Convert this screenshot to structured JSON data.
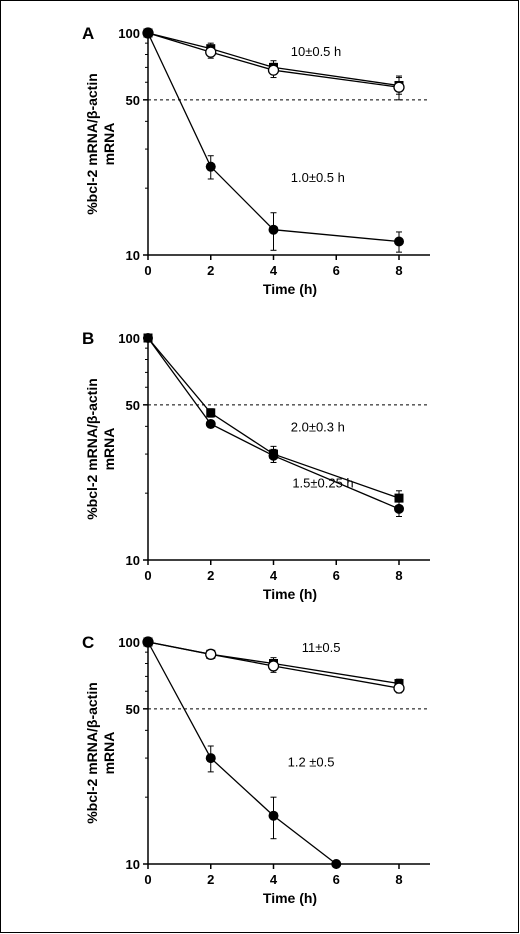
{
  "chart_data": [
    {
      "panel": "A",
      "type": "line",
      "xlabel": "Time (h)",
      "ylabel": "%bcl-2 mRNA/β-actin mRNA",
      "ylabel_lines": [
        "%bcl-2 mRNA/β-actin",
        "mRNA"
      ],
      "y_scale": "log",
      "xlim": [
        0,
        9
      ],
      "ylim": [
        10,
        100
      ],
      "x_ticks": [
        "0",
        "2",
        "4",
        "6",
        "8"
      ],
      "y_ticks": [
        "10",
        "50",
        "100"
      ],
      "reference_line_y": 50,
      "series": [
        {
          "marker": "square",
          "x": [
            0,
            2,
            4,
            8
          ],
          "y": [
            100,
            85,
            70,
            58
          ],
          "err": [
            0,
            5,
            5,
            5
          ]
        },
        {
          "marker": "open-circle",
          "x": [
            0,
            2,
            4,
            8
          ],
          "y": [
            100,
            82,
            68,
            57
          ],
          "err": [
            0,
            5,
            5,
            7
          ]
        },
        {
          "marker": "filled-circle",
          "x": [
            0,
            2,
            4,
            8
          ],
          "y": [
            100,
            25,
            13,
            11.5
          ],
          "err": [
            0,
            3,
            2.5,
            1.2
          ]
        }
      ],
      "annotations": [
        {
          "text": "10±0.5 h",
          "x": 4.55,
          "y": 83
        },
        {
          "text": "1.0±0.5 h",
          "x": 4.55,
          "y": 22.5
        }
      ]
    },
    {
      "panel": "B",
      "type": "line",
      "xlabel": "Time (h)",
      "ylabel": "%bcl-2 mRNA/β-actin mRNA",
      "ylabel_lines": [
        "%bcl-2 mRNA/β-actin",
        "mRNA"
      ],
      "y_scale": "log",
      "xlim": [
        0,
        9
      ],
      "ylim": [
        10,
        100
      ],
      "x_ticks": [
        "0",
        "2",
        "4",
        "6",
        "8"
      ],
      "y_ticks": [
        "10",
        "50",
        "100"
      ],
      "reference_line_y": 50,
      "series": [
        {
          "marker": "square",
          "x": [
            0,
            2,
            4,
            8
          ],
          "y": [
            100,
            46,
            30,
            19
          ],
          "err": [
            0,
            2,
            2.5,
            1.5
          ]
        },
        {
          "marker": "filled-circle",
          "x": [
            0,
            2,
            4,
            8
          ],
          "y": [
            100,
            41,
            29.5,
            17
          ],
          "err": [
            0,
            1.5,
            2,
            1.3
          ]
        }
      ],
      "annotations": [
        {
          "text": "2.0±0.3 h",
          "x": 4.55,
          "y": 40
        },
        {
          "text": "1.5±0.25 h",
          "x": 4.6,
          "y": 22.3
        }
      ]
    },
    {
      "panel": "C",
      "type": "line",
      "xlabel": "Time (h)",
      "ylabel": "%bcl-2 mRNA/β-actin mRNA",
      "ylabel_lines": [
        "%bcl-2 mRNA/β-actin",
        "mRNA"
      ],
      "y_scale": "log",
      "xlim": [
        0,
        9
      ],
      "ylim": [
        10,
        100
      ],
      "x_ticks": [
        "0",
        "2",
        "4",
        "6",
        "8"
      ],
      "y_ticks": [
        "10",
        "50",
        "100"
      ],
      "reference_line_y": 50,
      "series": [
        {
          "marker": "square",
          "x": [
            0,
            2,
            4,
            8
          ],
          "y": [
            100,
            88,
            80,
            65
          ],
          "err": [
            0,
            4,
            5,
            3
          ]
        },
        {
          "marker": "open-circle",
          "x": [
            0,
            2,
            4,
            8
          ],
          "y": [
            100,
            88,
            78,
            62
          ],
          "err": [
            0,
            4,
            5,
            3
          ]
        },
        {
          "marker": "filled-circle",
          "x": [
            0,
            2,
            4,
            6
          ],
          "y": [
            100,
            30,
            16.5,
            10
          ],
          "err": [
            0,
            4,
            3.5,
            0
          ]
        }
      ],
      "annotations": [
        {
          "text": "11±0.5",
          "x": 4.9,
          "y": 95
        },
        {
          "text": "1.2 ±0.5",
          "x": 4.45,
          "y": 29
        }
      ]
    }
  ]
}
